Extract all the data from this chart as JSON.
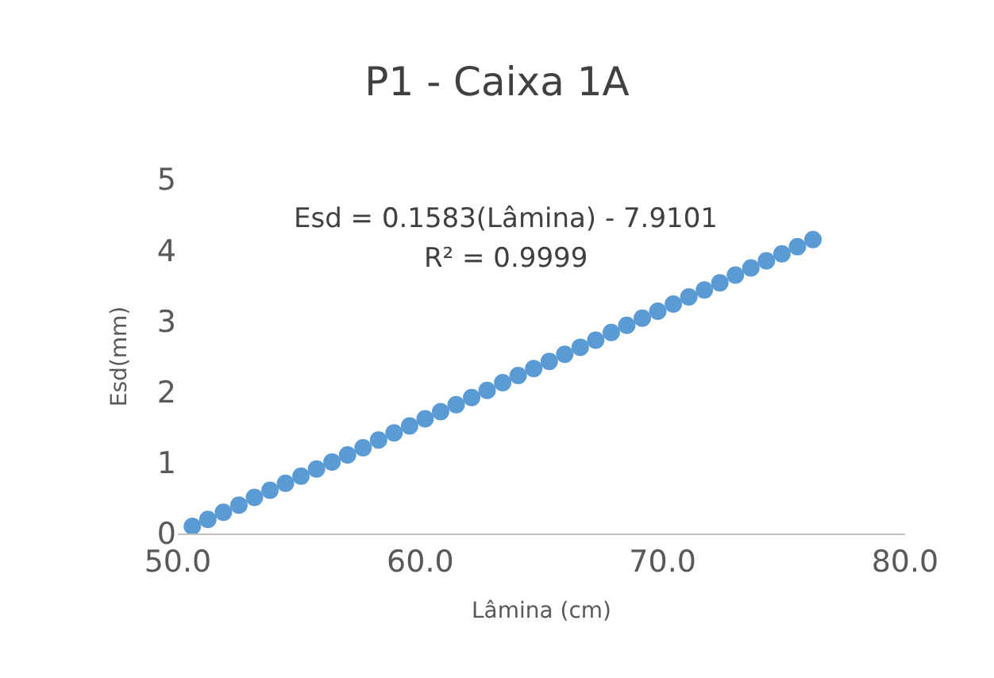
{
  "chart_data": {
    "type": "scatter",
    "title": "P1 - Caixa 1A",
    "xlabel": "Lâmina (cm)",
    "ylabel": "Esd(mm)",
    "annotations": [
      "Esd = 0.1583(Lâmina) - 7.9101",
      "R² = 0.9999"
    ],
    "x": [
      50.6,
      51.24,
      51.88,
      52.52,
      53.16,
      53.8,
      54.44,
      55.08,
      55.72,
      56.36,
      57.0,
      57.64,
      58.28,
      58.92,
      59.56,
      60.2,
      60.84,
      61.48,
      62.12,
      62.76,
      63.4,
      64.04,
      64.68,
      65.32,
      65.96,
      66.6,
      67.24,
      67.88,
      68.52,
      69.16,
      69.8,
      70.44,
      71.08,
      71.72,
      72.36,
      73.0,
      73.64,
      74.28,
      74.92,
      75.56,
      76.2
    ],
    "series": [
      {
        "color": "#5b9bd5",
        "values": [
          0.1,
          0.2,
          0.3,
          0.4,
          0.51,
          0.61,
          0.71,
          0.81,
          0.91,
          1.01,
          1.11,
          1.21,
          1.32,
          1.42,
          1.52,
          1.62,
          1.72,
          1.82,
          1.92,
          2.02,
          2.13,
          2.23,
          2.33,
          2.43,
          2.53,
          2.63,
          2.73,
          2.84,
          2.94,
          3.04,
          3.14,
          3.24,
          3.34,
          3.44,
          3.54,
          3.65,
          3.75,
          3.85,
          3.95,
          4.05,
          4.15
        ]
      }
    ],
    "xlim": [
      50,
      80
    ],
    "xticks": [
      {
        "value": 50,
        "label": "50.0"
      },
      {
        "value": 60,
        "label": "60.0"
      },
      {
        "value": 70,
        "label": "70.0"
      },
      {
        "value": 80,
        "label": "80.0"
      }
    ],
    "ylim": [
      0,
      5
    ],
    "yticks": [
      0,
      1,
      2,
      3,
      4,
      5
    ],
    "grid": false,
    "marker": "circle"
  }
}
